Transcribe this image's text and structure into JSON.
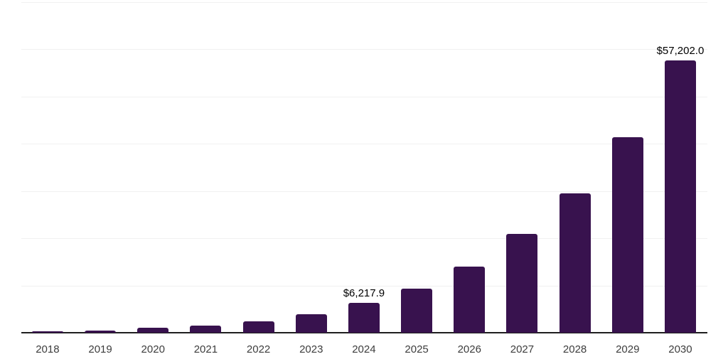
{
  "chart_data": {
    "type": "bar",
    "title": "",
    "xlabel": "",
    "ylabel": "",
    "categories": [
      "2018",
      "2019",
      "2020",
      "2021",
      "2022",
      "2023",
      "2024",
      "2025",
      "2026",
      "2027",
      "2028",
      "2029",
      "2030"
    ],
    "values": [
      350,
      520,
      1050,
      1470,
      2360,
      3860,
      6217.9,
      9200,
      13950,
      20700,
      29300,
      41100,
      57202.0
    ],
    "data_labels": [
      {
        "index": 6,
        "text": "$6,217.9"
      },
      {
        "index": 12,
        "text": "$57,202.0"
      }
    ],
    "ylim": [
      0,
      70000
    ],
    "gridline_interval": 10000,
    "grid_on": true,
    "legend": "none",
    "y_tick_labels_visible": false,
    "colors": {
      "bar": "#38124e",
      "gridline": "#f1f1f1",
      "axis": "#1f1f1f",
      "tick_label": "#3d3d3d",
      "value_label": "#000000",
      "background": "#ffffff"
    }
  }
}
